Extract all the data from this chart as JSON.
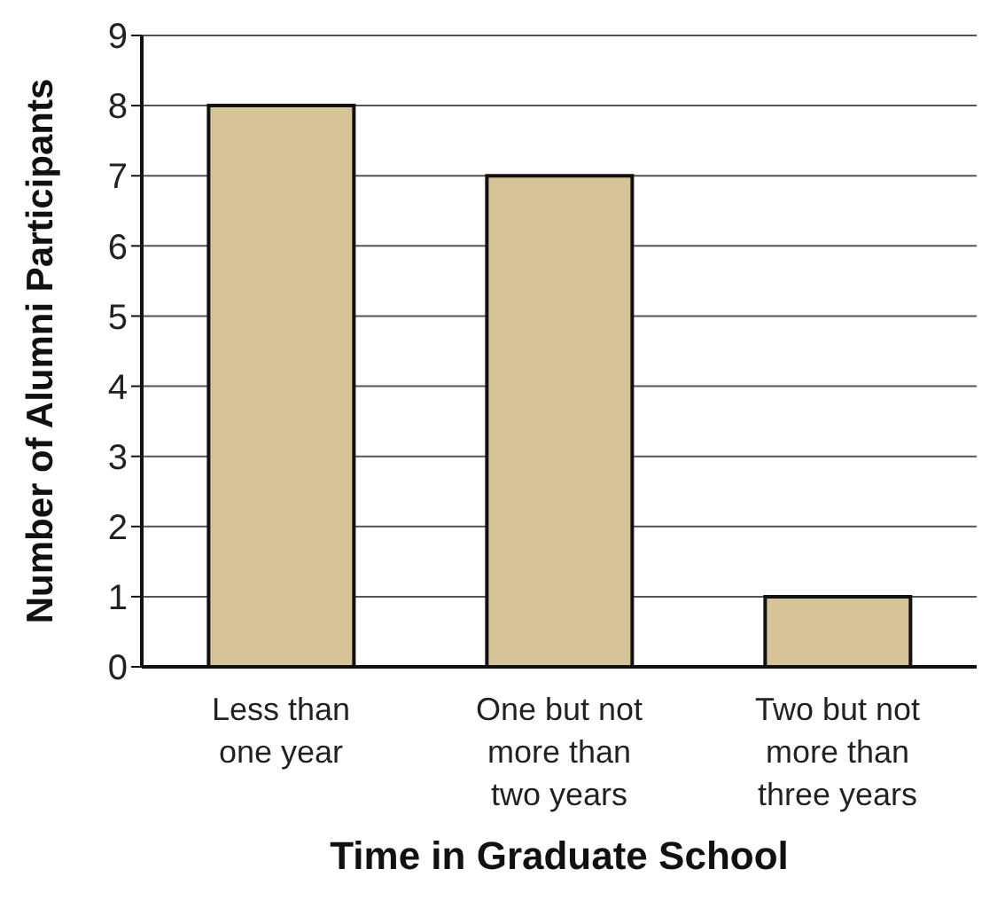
{
  "chart_data": {
    "type": "bar",
    "xlabel": "Time in Graduate School",
    "ylabel": "Number of Alumni Participants",
    "categories": [
      "Less than one year",
      "One but not more than two years",
      "Two but not more than three years"
    ],
    "values": [
      8,
      7,
      1
    ],
    "color": "#d7c398",
    "ylim": [
      0,
      9
    ],
    "yticks": [
      0,
      1,
      2,
      3,
      4,
      5,
      6,
      7,
      8,
      9
    ],
    "grid": "y"
  }
}
